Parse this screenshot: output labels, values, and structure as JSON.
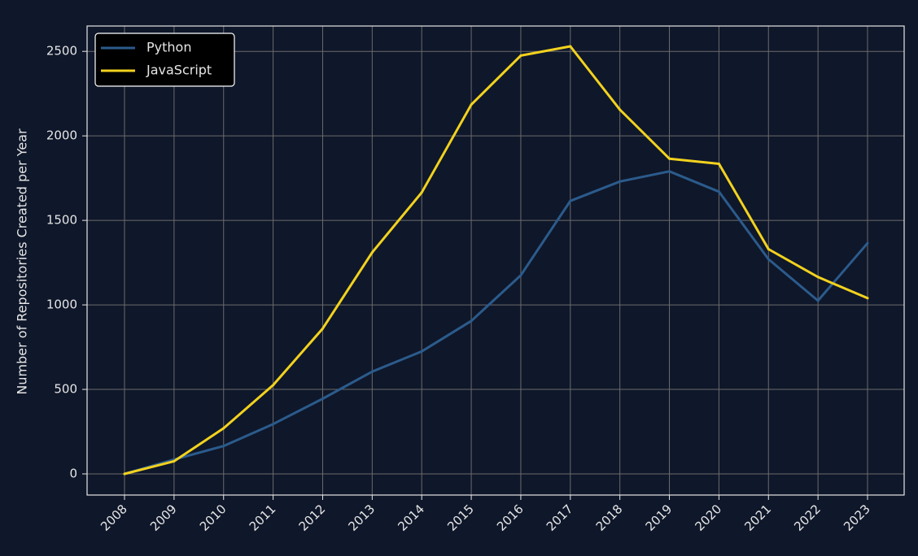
{
  "colors": {
    "background": "#0f172a",
    "grid": "#6b6b6b",
    "axis": "#e6e6e6",
    "text": "#e6e6e6",
    "legend_bg": "#000000",
    "legend_border": "#ffffff"
  },
  "chart_data": {
    "type": "line",
    "title": "",
    "xlabel": "",
    "ylabel": "Number of Repositories Created per Year",
    "x": [
      "2008",
      "2009",
      "2010",
      "2011",
      "2012",
      "2013",
      "2014",
      "2015",
      "2016",
      "2017",
      "2018",
      "2019",
      "2020",
      "2021",
      "2022",
      "2023"
    ],
    "yticks": [
      0,
      500,
      1000,
      1500,
      2000,
      2500
    ],
    "ylim": [
      -125,
      2650
    ],
    "grid": true,
    "legend_position": "top-left",
    "series": [
      {
        "name": "Python",
        "color": "#2b5b8c",
        "values": [
          0,
          85,
          165,
          295,
          445,
          605,
          725,
          905,
          1175,
          1615,
          1730,
          1790,
          1670,
          1270,
          1025,
          1365
        ]
      },
      {
        "name": "JavaScript",
        "color": "#f2d21e",
        "values": [
          0,
          75,
          270,
          525,
          860,
          1310,
          1665,
          2185,
          2475,
          2530,
          2155,
          1865,
          1835,
          1330,
          1165,
          1040
        ]
      }
    ]
  }
}
